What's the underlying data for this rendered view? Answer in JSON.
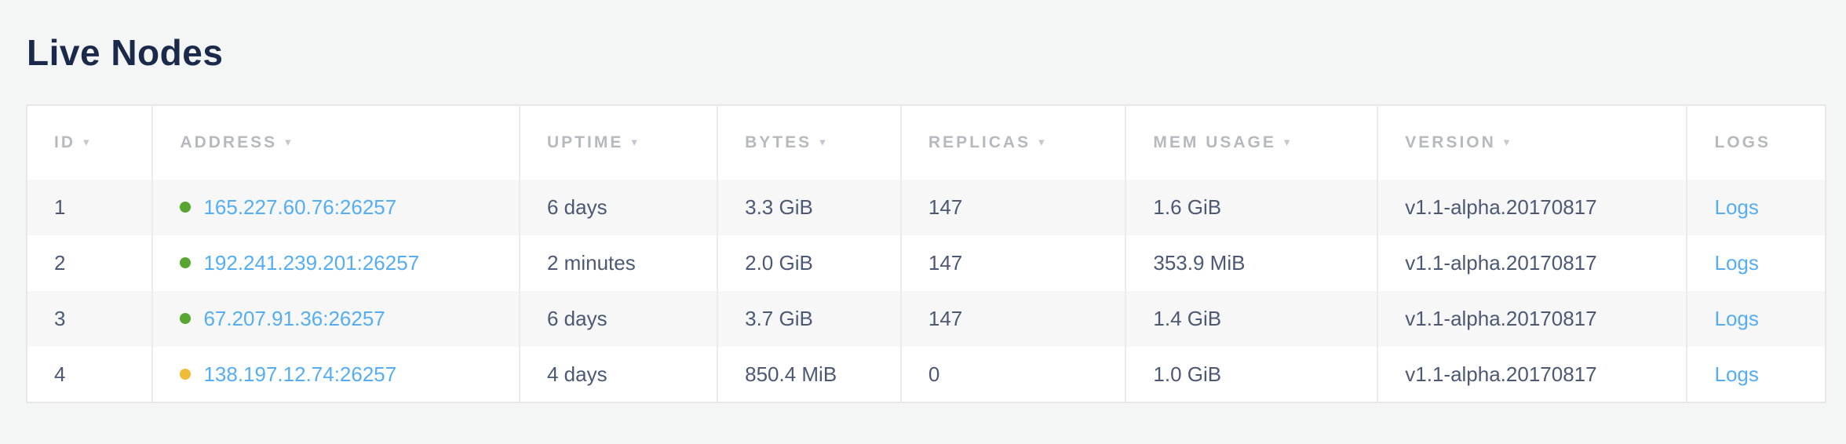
{
  "page": {
    "title": "Live Nodes"
  },
  "table": {
    "sort_indicator": "▾",
    "columns": [
      {
        "key": "id",
        "label": "ID",
        "sortable": true
      },
      {
        "key": "address",
        "label": "ADDRESS",
        "sortable": true
      },
      {
        "key": "uptime",
        "label": "UPTIME",
        "sortable": true
      },
      {
        "key": "bytes",
        "label": "BYTES",
        "sortable": true
      },
      {
        "key": "replicas",
        "label": "REPLICAS",
        "sortable": true
      },
      {
        "key": "mem_usage",
        "label": "MEM USAGE",
        "sortable": true
      },
      {
        "key": "version",
        "label": "VERSION",
        "sortable": true
      },
      {
        "key": "logs",
        "label": "LOGS",
        "sortable": false
      }
    ],
    "rows": [
      {
        "id": "1",
        "status": "healthy",
        "address": "165.227.60.76:26257",
        "uptime": "6 days",
        "bytes": "3.3 GiB",
        "replicas": "147",
        "mem_usage": "1.6 GiB",
        "version": "v1.1-alpha.20170817",
        "logs_label": "Logs"
      },
      {
        "id": "2",
        "status": "healthy",
        "address": "192.241.239.201:26257",
        "uptime": "2 minutes",
        "bytes": "2.0 GiB",
        "replicas": "147",
        "mem_usage": "353.9 MiB",
        "version": "v1.1-alpha.20170817",
        "logs_label": "Logs"
      },
      {
        "id": "3",
        "status": "healthy",
        "address": "67.207.91.36:26257",
        "uptime": "6 days",
        "bytes": "3.7 GiB",
        "replicas": "147",
        "mem_usage": "1.4 GiB",
        "version": "v1.1-alpha.20170817",
        "logs_label": "Logs"
      },
      {
        "id": "4",
        "status": "warning",
        "address": "138.197.12.74:26257",
        "uptime": "4 days",
        "bytes": "850.4 MiB",
        "replicas": "0",
        "mem_usage": "1.0 GiB",
        "version": "v1.1-alpha.20170817",
        "logs_label": "Logs"
      }
    ],
    "status_colors": {
      "healthy": "#58a632",
      "warning": "#f0bb36"
    }
  },
  "colors": {
    "page_background": "#f4f5f5",
    "title_text": "#1b2a4a",
    "header_text": "#b7b9be",
    "body_text": "#4d5874",
    "link": "#55aef3",
    "border": "#e7e7e8"
  }
}
